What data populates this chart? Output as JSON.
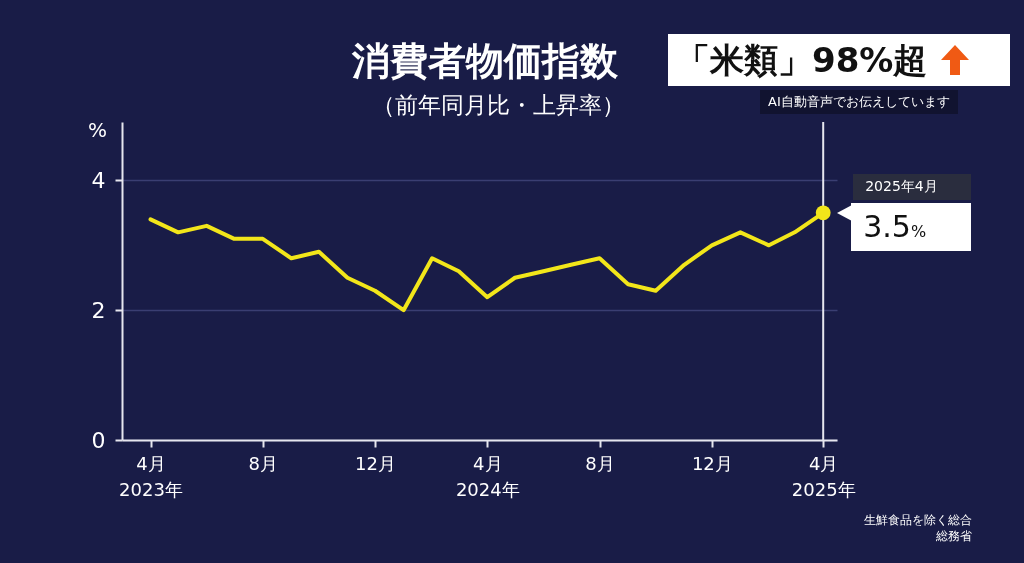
{
  "chart_data": {
    "type": "line",
    "title": "消費者物価指数",
    "subtitle": "（前年同月比・上昇率）",
    "ylabel": "%",
    "x": [
      "2023-04",
      "2023-05",
      "2023-06",
      "2023-07",
      "2023-08",
      "2023-09",
      "2023-10",
      "2023-11",
      "2023-12",
      "2024-01",
      "2024-02",
      "2024-03",
      "2024-04",
      "2024-05",
      "2024-06",
      "2024-07",
      "2024-08",
      "2024-09",
      "2024-10",
      "2024-11",
      "2024-12",
      "2025-01",
      "2025-02",
      "2025-03",
      "2025-04"
    ],
    "series": [
      {
        "color": "#f2e61a",
        "values": [
          3.4,
          3.2,
          3.3,
          3.1,
          3.1,
          2.8,
          2.9,
          2.5,
          2.3,
          2.0,
          2.8,
          2.6,
          2.2,
          2.5,
          2.6,
          2.7,
          2.8,
          2.4,
          2.3,
          2.7,
          3.0,
          3.2,
          3.0,
          3.2,
          3.5
        ]
      }
    ],
    "xlim": [
      "2023-03",
      "2025-04-16"
    ],
    "xticks": [
      {
        "value": "2023-04",
        "label": "4月\n2023年"
      },
      {
        "value": "2023-08",
        "label": "8月"
      },
      {
        "value": "2023-12",
        "label": "12月"
      },
      {
        "value": "2024-04",
        "label": "4月\n2024年"
      },
      {
        "value": "2024-08",
        "label": "8月"
      },
      {
        "value": "2024-12",
        "label": "12月"
      },
      {
        "value": "2025-04",
        "label": "4月\n2025年"
      }
    ],
    "ylim": [
      0,
      4.9
    ],
    "yticks": [
      0,
      2,
      4
    ],
    "grid": "y",
    "marker": "none",
    "line_style": "solid",
    "ref_lines": [
      {
        "axis": "x",
        "value": "2025-04",
        "color": "#e6e6ee"
      }
    ],
    "annotations": [
      "「米類」98%超",
      "AI自動音声でお伝えしています",
      "2025年4月",
      {
        "text": "3.5%",
        "x": "2025-04",
        "y": 3.5
      },
      "生鮮食品を除く総合",
      "総務省"
    ]
  }
}
